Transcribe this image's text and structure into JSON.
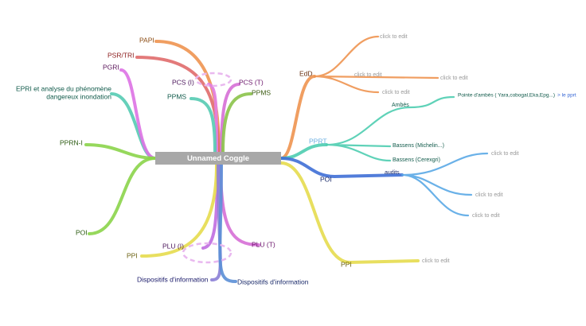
{
  "root": {
    "label": "Unnamed Coggle"
  },
  "nodes": [
    {
      "label": "PAPI"
    },
    {
      "label": "PSR/TRI"
    },
    {
      "label": "PCS (I)"
    },
    {
      "label": "PCS (T)"
    },
    {
      "label": "PPMS"
    },
    {
      "label": "PPMS"
    },
    {
      "lines": [
        "EPRI et analyse du phénomène",
        "dangereux inondation"
      ]
    },
    {
      "label": "PGRI"
    },
    {
      "label": "PPRN-I"
    },
    {
      "label": "POI"
    },
    {
      "label": "PLU (I)"
    },
    {
      "label": "PLU (T)"
    },
    {
      "label": "PPI"
    },
    {
      "label": "Dispositifs d'information"
    },
    {
      "label": "Dispositifs d'information"
    },
    {
      "label": "EdD"
    },
    {
      "label": "click to edit"
    },
    {
      "label": "click to edit"
    },
    {
      "label": "click to edit"
    },
    {
      "label": "click to edit"
    },
    {
      "label": "PPRT"
    },
    {
      "label": "Ambès"
    },
    {
      "label": "Pointe d'ambès ( Yara,cobogal,Eka,Epg...)",
      "link": "> le pprt"
    },
    {
      "label": "Bassens (Michelin...)"
    },
    {
      "label": "Bassens (Cerexgri)"
    },
    {
      "label": "POI"
    },
    {
      "label": "audits"
    },
    {
      "label": "click to edit"
    },
    {
      "label": "click to edit"
    },
    {
      "label": "click to edit"
    },
    {
      "label": "PPI"
    },
    {
      "label": "click to edit"
    }
  ]
}
